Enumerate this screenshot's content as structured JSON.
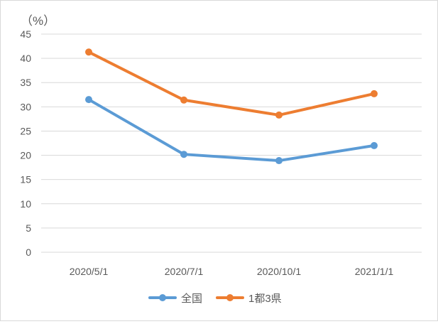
{
  "chart_data": {
    "type": "line",
    "unit_label": "（%）",
    "categories": [
      "2020/5/1",
      "2020/7/1",
      "2020/10/1",
      "2021/1/1"
    ],
    "series": [
      {
        "name": "全国",
        "values": [
          31.5,
          20.2,
          18.9,
          22.0
        ],
        "color": "#5b9bd5"
      },
      {
        "name": "1都3県",
        "values": [
          41.3,
          31.4,
          28.3,
          32.7
        ],
        "color": "#ed7d31"
      }
    ],
    "ylim": [
      0,
      45
    ],
    "y_ticks": [
      0,
      5,
      10,
      15,
      20,
      25,
      30,
      35,
      40,
      45
    ],
    "grid": true,
    "legend_position": "bottom"
  }
}
